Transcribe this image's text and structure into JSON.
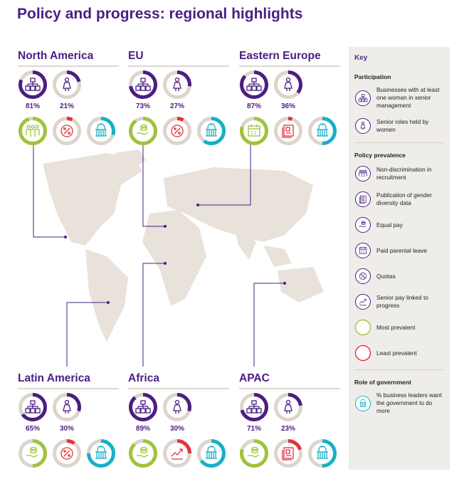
{
  "title": "Policy and progress: regional highlights",
  "colors": {
    "purple": "#4b1e82",
    "green": "#9ec43c",
    "red": "#e8303a",
    "teal": "#16b0c8",
    "track": "#ddd5cb",
    "map": "#e8e2da"
  },
  "regions": [
    {
      "name": "North America",
      "participation": [
        {
          "icon": "org-chart-icon",
          "value": 81,
          "label": "81%"
        },
        {
          "icon": "woman-icon",
          "value": 21,
          "label": "21%"
        }
      ],
      "policies": [
        {
          "icon": "people-icon",
          "type": "most",
          "value": 95
        },
        {
          "icon": "percent-icon",
          "type": "least",
          "value": 7
        },
        {
          "icon": "government-icon",
          "type": "government",
          "value": 30
        }
      ]
    },
    {
      "name": "EU",
      "participation": [
        {
          "icon": "org-chart-icon",
          "value": 73,
          "label": "73%"
        },
        {
          "icon": "woman-icon",
          "value": 27,
          "label": "27%"
        }
      ],
      "policies": [
        {
          "icon": "equal-pay-icon",
          "type": "most",
          "value": 90
        },
        {
          "icon": "percent-icon",
          "type": "least",
          "value": 8
        },
        {
          "icon": "government-icon",
          "type": "government",
          "value": 60
        }
      ]
    },
    {
      "name": "Eastern Europe",
      "participation": [
        {
          "icon": "org-chart-icon",
          "value": 87,
          "label": "87%"
        },
        {
          "icon": "woman-icon",
          "value": 36,
          "label": "36%"
        }
      ],
      "policies": [
        {
          "icon": "calendar-icon",
          "type": "most",
          "value": 80
        },
        {
          "icon": "document-icon",
          "type": "least",
          "value": 5
        },
        {
          "icon": "government-icon",
          "type": "government",
          "value": 50
        }
      ]
    },
    {
      "name": "Latin America",
      "participation": [
        {
          "icon": "org-chart-icon",
          "value": 65,
          "label": "65%"
        },
        {
          "icon": "woman-icon",
          "value": 30,
          "label": "30%"
        }
      ],
      "policies": [
        {
          "icon": "equal-pay-icon",
          "type": "most",
          "value": 50
        },
        {
          "icon": "percent-icon",
          "type": "least",
          "value": 10
        },
        {
          "icon": "government-icon",
          "type": "government",
          "value": 75
        }
      ]
    },
    {
      "name": "Africa",
      "participation": [
        {
          "icon": "org-chart-icon",
          "value": 89,
          "label": "89%"
        },
        {
          "icon": "woman-icon",
          "value": 30,
          "label": "30%"
        }
      ],
      "policies": [
        {
          "icon": "equal-pay-icon",
          "type": "most",
          "value": 88
        },
        {
          "icon": "trend-icon",
          "type": "least",
          "value": 25
        },
        {
          "icon": "government-icon",
          "type": "government",
          "value": 65
        }
      ]
    },
    {
      "name": "APAC",
      "participation": [
        {
          "icon": "org-chart-icon",
          "value": 71,
          "label": "71%"
        },
        {
          "icon": "woman-icon",
          "value": 23,
          "label": "23%"
        }
      ],
      "policies": [
        {
          "icon": "equal-pay-icon",
          "type": "most",
          "value": 80
        },
        {
          "icon": "document-icon",
          "type": "least",
          "value": 20
        },
        {
          "icon": "government-icon",
          "type": "government",
          "value": 50
        }
      ]
    }
  ],
  "key": {
    "title": "Key",
    "participation": {
      "heading": "Participation",
      "items": [
        {
          "icon": "org-chart-icon",
          "label": "Businesses with at least one woman in senior management"
        },
        {
          "icon": "woman-icon",
          "label": "Senior roles held by women"
        }
      ]
    },
    "policy": {
      "heading": "Policy prevalence",
      "items": [
        {
          "icon": "people-icon",
          "label": "Non-discrimination in recruitment"
        },
        {
          "icon": "document-icon",
          "label": "Publication of gender diversity data"
        },
        {
          "icon": "equal-pay-icon",
          "label": "Equal pay"
        },
        {
          "icon": "calendar-icon",
          "label": "Paid parental leave"
        },
        {
          "icon": "percent-icon",
          "label": "Quotas"
        },
        {
          "icon": "trend-icon",
          "label": "Senior pay linked to progress"
        },
        {
          "icon": "green-ring-icon",
          "label": "Most prevalent"
        },
        {
          "icon": "red-ring-icon",
          "label": "Least prevalent"
        }
      ]
    },
    "government": {
      "heading": "Role of government",
      "items": [
        {
          "icon": "government-icon",
          "label": "% business leaders want the government to do more"
        }
      ]
    }
  }
}
